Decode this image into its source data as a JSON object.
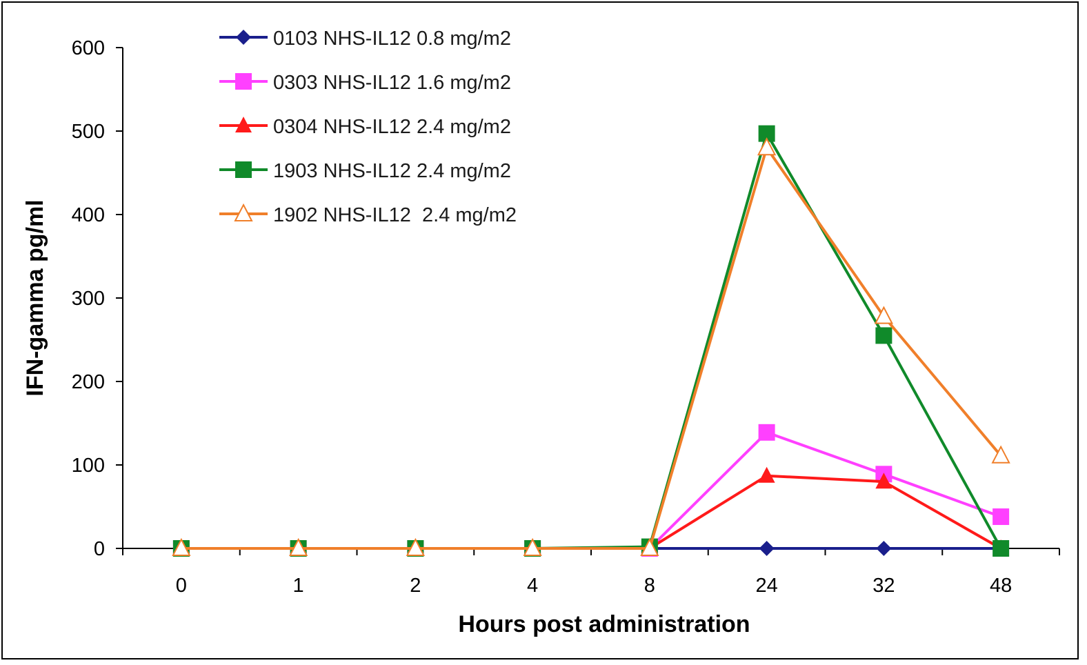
{
  "chart_data": {
    "type": "line",
    "title": "",
    "xlabel": "Hours post administration",
    "ylabel": "IFN-gamma pg/ml",
    "categories": [
      "0",
      "1",
      "2",
      "4",
      "8",
      "24",
      "32",
      "48"
    ],
    "ylim": [
      0,
      600
    ],
    "yticks": [
      0,
      100,
      200,
      300,
      400,
      500,
      600
    ],
    "grid": false,
    "legend": "top-left",
    "series": [
      {
        "name": "0103 NHS-IL12 0.8 mg/m2",
        "color": "#1a1f8c",
        "marker": "diamond",
        "values": [
          0,
          0,
          0,
          0,
          0,
          0,
          0,
          0
        ]
      },
      {
        "name": "0303 NHS-IL12 1.6 mg/m2",
        "color": "#ff40ff",
        "marker": "square",
        "values": [
          0,
          0,
          0,
          0,
          0,
          139,
          89,
          38
        ]
      },
      {
        "name": "0304 NHS-IL12 2.4 mg/m2",
        "color": "#ff1a1a",
        "marker": "triangle",
        "values": [
          0,
          0,
          0,
          0,
          0,
          87,
          80,
          0
        ]
      },
      {
        "name": "1903 NHS-IL12 2.4 mg/m2",
        "color": "#108a2a",
        "marker": "square",
        "values": [
          0,
          0,
          0,
          0,
          2,
          497,
          255,
          0
        ]
      },
      {
        "name": "1902 NHS-IL12  2.4 mg/m2",
        "color": "#f07f2a",
        "marker": "triangle-open",
        "values": [
          0,
          0,
          0,
          0,
          0,
          480,
          278,
          111
        ]
      }
    ]
  }
}
